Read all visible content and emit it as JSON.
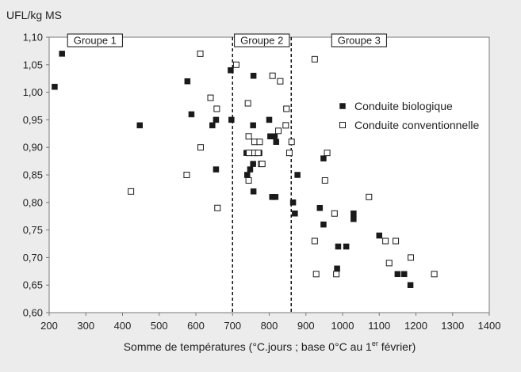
{
  "chart_data": {
    "type": "scatter",
    "title": "",
    "ylabel": "UFL/kg MS",
    "xlabel_parts": {
      "before": "Somme de températures (°C.jours ; base 0°C au 1",
      "superscript": "er",
      "after": " février)"
    },
    "xlim": [
      200,
      1400
    ],
    "ylim": [
      0.6,
      1.1
    ],
    "x_ticks": [
      200,
      300,
      400,
      500,
      600,
      700,
      800,
      900,
      1000,
      1100,
      1200,
      1300,
      1400
    ],
    "y_ticks": [
      "0,60",
      "0,65",
      "0,70",
      "0,75",
      "0,80",
      "0,85",
      "0,90",
      "0,95",
      "1,00",
      "1,05",
      "1,10"
    ],
    "y_tick_values": [
      0.6,
      0.65,
      0.7,
      0.75,
      0.8,
      0.85,
      0.9,
      0.95,
      1.0,
      1.05,
      1.1
    ],
    "grid": false,
    "legend_position": "top-right",
    "vertical_lines": [
      700,
      860
    ],
    "groups": [
      {
        "label": "Groupe 1",
        "x": 325
      },
      {
        "label": "Groupe 2",
        "x": 780
      },
      {
        "label": "Groupe 3",
        "x": 1045
      }
    ],
    "series": [
      {
        "name": "Conduite biologique",
        "marker": "filled-square",
        "color": "#1a1a1a",
        "points": [
          [
            215,
            1.01
          ],
          [
            235,
            1.07
          ],
          [
            447,
            0.94
          ],
          [
            577,
            1.02
          ],
          [
            588,
            0.96
          ],
          [
            645,
            0.94
          ],
          [
            655,
            0.95
          ],
          [
            655,
            0.86
          ],
          [
            695,
            1.04
          ],
          [
            697,
            0.95
          ],
          [
            738,
            0.89
          ],
          [
            740,
            0.85
          ],
          [
            748,
            0.86
          ],
          [
            752,
            0.89
          ],
          [
            756,
            0.87
          ],
          [
            756,
            0.94
          ],
          [
            757,
            0.82
          ],
          [
            757,
            1.03
          ],
          [
            773,
            0.89
          ],
          [
            800,
            0.95
          ],
          [
            803,
            0.92
          ],
          [
            808,
            0.81
          ],
          [
            815,
            0.92
          ],
          [
            817,
            0.81
          ],
          [
            819,
            0.91
          ],
          [
            865,
            0.8
          ],
          [
            870,
            0.78
          ],
          [
            877,
            0.85
          ],
          [
            938,
            0.79
          ],
          [
            948,
            0.76
          ],
          [
            948,
            0.88
          ],
          [
            985,
            0.68
          ],
          [
            988,
            0.72
          ],
          [
            1010,
            0.72
          ],
          [
            1030,
            0.78
          ],
          [
            1030,
            0.77
          ],
          [
            1100,
            0.74
          ],
          [
            1150,
            0.67
          ],
          [
            1168,
            0.67
          ],
          [
            1185,
            0.65
          ]
        ]
      },
      {
        "name": "Conduite conventionnelle",
        "marker": "open-square",
        "color": "#1a1a1a",
        "points": [
          [
            423,
            0.82
          ],
          [
            575,
            0.85
          ],
          [
            612,
            1.07
          ],
          [
            613,
            0.9
          ],
          [
            640,
            0.99
          ],
          [
            657,
            0.97
          ],
          [
            659,
            0.79
          ],
          [
            710,
            1.05
          ],
          [
            742,
            0.98
          ],
          [
            744,
            0.92
          ],
          [
            744,
            0.84
          ],
          [
            745,
            0.89
          ],
          [
            760,
            0.91
          ],
          [
            760,
            0.89
          ],
          [
            770,
            0.89
          ],
          [
            774,
            0.91
          ],
          [
            778,
            0.87
          ],
          [
            781,
            0.87
          ],
          [
            809,
            1.03
          ],
          [
            825,
            0.93
          ],
          [
            830,
            1.02
          ],
          [
            845,
            0.94
          ],
          [
            847,
            0.97
          ],
          [
            855,
            0.89
          ],
          [
            861,
            0.91
          ],
          [
            924,
            1.06
          ],
          [
            924,
            0.73
          ],
          [
            928,
            0.67
          ],
          [
            952,
            0.84
          ],
          [
            958,
            0.89
          ],
          [
            978,
            0.78
          ],
          [
            983,
            0.67
          ],
          [
            1072,
            0.81
          ],
          [
            1117,
            0.73
          ],
          [
            1145,
            0.73
          ],
          [
            1127,
            0.69
          ],
          [
            1186,
            0.7
          ],
          [
            1250,
            0.67
          ]
        ]
      }
    ]
  }
}
